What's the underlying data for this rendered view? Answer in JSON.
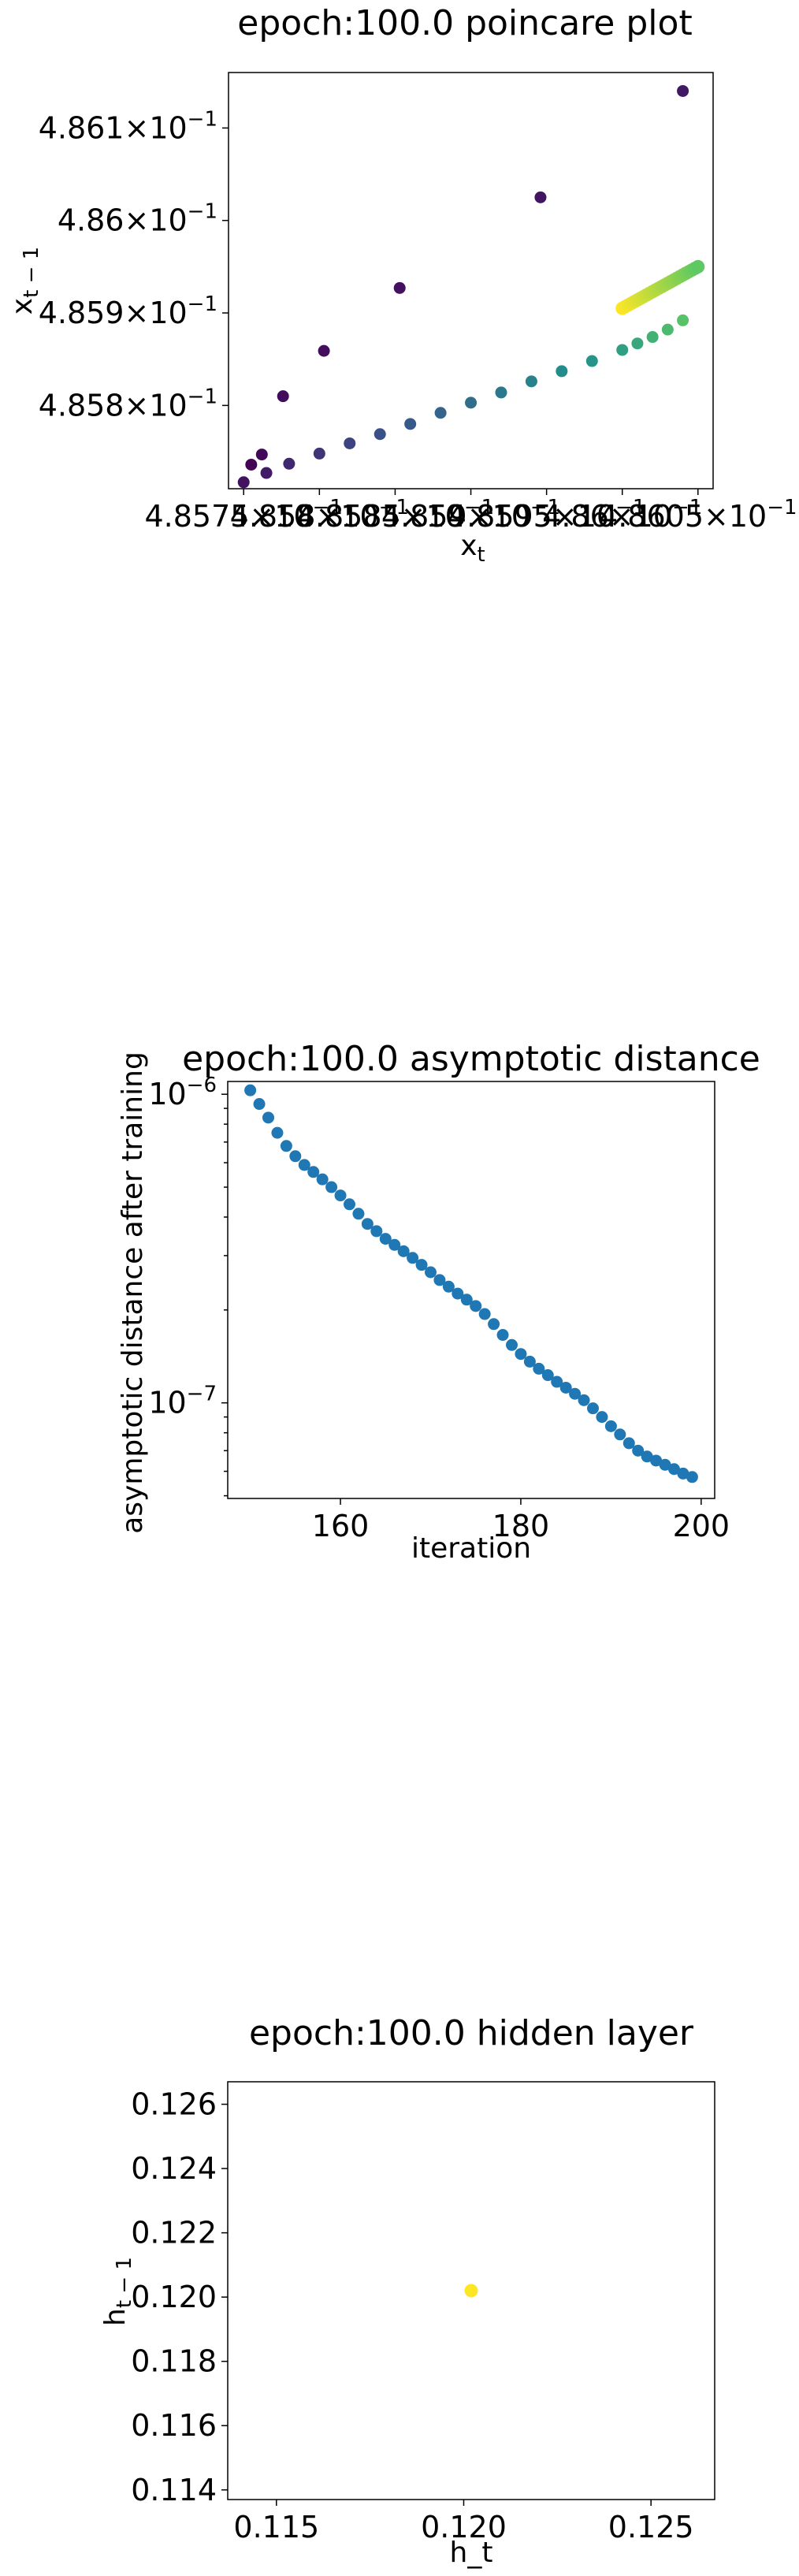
{
  "chart_data": [
    {
      "type": "scatter",
      "title": "epoch:100.0 poincare plot",
      "xlabel": "x_t",
      "ylabel": "x_{t-1}",
      "xscale": "log",
      "yscale": "log",
      "xlim": [
        0.48574,
        0.48606
      ],
      "ylim": [
        0.48571,
        0.48616
      ],
      "xtick_labels": [
        "4.8575×10^-1",
        "4.858×10^-1",
        "4.8585×10^-1",
        "4.859×10^-1",
        "4.8595×10^-1",
        "4.86×10^-1",
        "4.8605×10^-1"
      ],
      "ytick_labels": [
        "4.858×10^-1",
        "4.859×10^-1",
        "4.86×10^-1",
        "4.861×10^-1"
      ],
      "xticks": [
        0.48575,
        0.4858,
        0.48585,
        0.4859,
        0.48595,
        0.486,
        0.48605
      ],
      "yticks": [
        0.4858,
        0.4859,
        0.486,
        0.4861
      ],
      "colormap": [
        "#440154",
        "#3b528b",
        "#21918c",
        "#5ec962",
        "#fde725"
      ],
      "outer_points": {
        "x": [
          0.485755,
          0.485762,
          0.485776,
          0.485803,
          0.485853,
          0.485946,
          0.48604
        ],
        "y": [
          0.485736,
          0.485747,
          0.48581,
          0.485859,
          0.485927,
          0.486025,
          0.48614
        ],
        "color_index": [
          0.01,
          0.02,
          0.03,
          0.04,
          0.05,
          0.06,
          0.07
        ]
      },
      "spiral_points": {
        "x": [
          0.48575,
          0.485765,
          0.48578,
          0.4858,
          0.48582,
          0.48584,
          0.48586,
          0.48588,
          0.4859,
          0.48592,
          0.48594,
          0.48596,
          0.48598,
          0.486,
          0.48601,
          0.48602,
          0.48603,
          0.48604
        ],
        "y": [
          0.485717,
          0.485727,
          0.485737,
          0.485748,
          0.485759,
          0.485769,
          0.48578,
          0.485792,
          0.485803,
          0.485814,
          0.485826,
          0.485837,
          0.485848,
          0.48586,
          0.485867,
          0.485874,
          0.485882,
          0.485892
        ],
        "color_index": [
          0.05,
          0.08,
          0.12,
          0.16,
          0.2,
          0.24,
          0.28,
          0.32,
          0.36,
          0.4,
          0.44,
          0.48,
          0.52,
          0.56,
          0.6,
          0.64,
          0.68,
          0.72
        ]
      },
      "cluster": {
        "x_start": 0.486,
        "x_end": 0.48605,
        "y_start": 0.485905,
        "y_end": 0.48595,
        "count": 26
      }
    },
    {
      "type": "scatter",
      "title": "epoch:100.0 asymptotic distance",
      "xlabel": "iteration",
      "ylabel": "asymptotic distance after training",
      "xscale": "linear",
      "yscale": "log",
      "xlim": [
        147.5,
        201.5
      ],
      "ylim": [
        4.9e-08,
        1.1e-06
      ],
      "xticks": [
        160,
        180,
        200
      ],
      "xtick_labels": [
        "160",
        "180",
        "200"
      ],
      "yticks": [
        1e-07,
        1e-06
      ],
      "ytick_labels": [
        "10^-7",
        "10^-6"
      ],
      "color": "#1f77b4",
      "x": [
        150,
        151,
        152,
        153,
        154,
        155,
        156,
        157,
        158,
        159,
        160,
        161,
        162,
        163,
        164,
        165,
        166,
        167,
        168,
        169,
        170,
        171,
        172,
        173,
        174,
        175,
        176,
        177,
        178,
        179,
        180,
        181,
        182,
        183,
        184,
        185,
        186,
        187,
        188,
        189,
        190,
        191,
        192,
        193,
        194,
        195,
        196,
        197,
        198,
        199
      ],
      "y": [
        1.03e-06,
        9.3e-07,
        8.4e-07,
        7.5e-07,
        6.8e-07,
        6.3e-07,
        5.9e-07,
        5.6e-07,
        5.3e-07,
        5e-07,
        4.7e-07,
        4.4e-07,
        4.1e-07,
        3.8e-07,
        3.6e-07,
        3.4e-07,
        3.25e-07,
        3.1e-07,
        2.95e-07,
        2.8e-07,
        2.65e-07,
        2.5e-07,
        2.38e-07,
        2.26e-07,
        2.16e-07,
        2.06e-07,
        1.94e-07,
        1.8e-07,
        1.66e-07,
        1.54e-07,
        1.44e-07,
        1.36e-07,
        1.29e-07,
        1.23e-07,
        1.17e-07,
        1.12e-07,
        1.07e-07,
        1.02e-07,
        9.6e-08,
        9e-08,
        8.4e-08,
        7.9e-08,
        7.4e-08,
        7e-08,
        6.7e-08,
        6.5e-08,
        6.3e-08,
        6.1e-08,
        5.9e-08,
        5.75e-08
      ]
    },
    {
      "type": "scatter",
      "title": "epoch:100.0 hidden layer",
      "xlabel": "h_t",
      "ylabel": "h_{t-1}",
      "xscale": "linear",
      "yscale": "linear",
      "xlim": [
        0.1137,
        0.1267
      ],
      "ylim": [
        0.1137,
        0.1267
      ],
      "xticks": [
        0.115,
        0.12,
        0.125
      ],
      "xtick_labels": [
        "0.115",
        "0.120",
        "0.125"
      ],
      "yticks": [
        0.114,
        0.116,
        0.118,
        0.12,
        0.122,
        0.124,
        0.126
      ],
      "ytick_labels": [
        "0.114",
        "0.116",
        "0.118",
        "0.120",
        "0.122",
        "0.124",
        "0.126"
      ],
      "color": "#fde725",
      "x": [
        0.1202
      ],
      "y": [
        0.1202
      ]
    }
  ]
}
